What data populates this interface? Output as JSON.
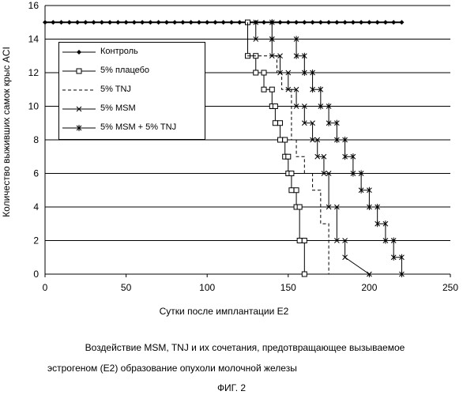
{
  "chart_data": {
    "type": "line",
    "title": "",
    "xlabel": "Сутки после имплантации E2",
    "ylabel": "Количество выживших самок крыс ACI",
    "xlim": [
      0,
      250
    ],
    "ylim": [
      0,
      16
    ],
    "xticks": [
      "0",
      "50",
      "100",
      "150",
      "200",
      "250"
    ],
    "yticks": [
      "0",
      "2",
      "4",
      "6",
      "8",
      "10",
      "12",
      "14",
      "16"
    ],
    "grid": "horizontal",
    "legend_position": "upper-left",
    "series": [
      {
        "name": "Контроль",
        "style": "solid-diamond",
        "x": [
          0,
          5,
          10,
          15,
          20,
          25,
          30,
          35,
          40,
          45,
          50,
          55,
          60,
          65,
          70,
          75,
          80,
          85,
          90,
          95,
          100,
          105,
          110,
          115,
          120,
          125,
          130,
          135,
          140,
          145,
          150,
          155,
          160,
          165,
          170,
          175,
          180,
          185,
          190,
          195,
          200,
          205,
          210,
          215,
          220
        ],
        "y": [
          15,
          15,
          15,
          15,
          15,
          15,
          15,
          15,
          15,
          15,
          15,
          15,
          15,
          15,
          15,
          15,
          15,
          15,
          15,
          15,
          15,
          15,
          15,
          15,
          15,
          15,
          15,
          15,
          15,
          15,
          15,
          15,
          15,
          15,
          15,
          15,
          15,
          15,
          15,
          15,
          15,
          15,
          15,
          15,
          15
        ]
      },
      {
        "name": "5% плацебо",
        "style": "solid-square",
        "x": [
          125,
          125,
          130,
          130,
          135,
          135,
          140,
          140,
          142,
          142,
          145,
          145,
          148,
          148,
          150,
          150,
          152,
          152,
          155,
          155,
          157,
          157,
          160,
          160
        ],
        "y": [
          15,
          13,
          13,
          12,
          12,
          11,
          11,
          10,
          10,
          9,
          9,
          8,
          8,
          7,
          7,
          6,
          6,
          5,
          5,
          4,
          4,
          2,
          2,
          0
        ]
      },
      {
        "name": "5% TNJ",
        "style": "dashed",
        "x": [
          125,
          125,
          130,
          130,
          143,
          143,
          146,
          146,
          152,
          152,
          155,
          155,
          160,
          160,
          165,
          165,
          170,
          170,
          175,
          175
        ],
        "y": [
          15,
          13,
          13,
          13,
          13,
          12,
          12,
          11,
          11,
          8,
          8,
          7,
          7,
          6,
          6,
          5,
          5,
          3,
          3,
          0
        ]
      },
      {
        "name": "5% MSM",
        "style": "solid-x",
        "x": [
          130,
          130,
          140,
          140,
          145,
          145,
          150,
          150,
          155,
          155,
          160,
          160,
          165,
          165,
          168,
          168,
          172,
          172,
          175,
          175,
          180,
          180,
          185,
          185,
          200
        ],
        "y": [
          15,
          14,
          14,
          13,
          13,
          12,
          12,
          11,
          11,
          10,
          10,
          9,
          9,
          8,
          8,
          7,
          7,
          6,
          6,
          4,
          4,
          2,
          2,
          1,
          0
        ]
      },
      {
        "name": "5% MSM + 5% TNJ",
        "style": "solid-star",
        "x": [
          140,
          140,
          155,
          155,
          160,
          160,
          165,
          165,
          170,
          170,
          175,
          175,
          180,
          180,
          185,
          185,
          190,
          190,
          195,
          195,
          200,
          200,
          205,
          205,
          210,
          210,
          215,
          215,
          220,
          220
        ],
        "y": [
          15,
          14,
          14,
          13,
          13,
          12,
          12,
          11,
          11,
          10,
          10,
          9,
          9,
          8,
          8,
          7,
          7,
          6,
          6,
          5,
          5,
          4,
          4,
          3,
          3,
          2,
          2,
          1,
          1,
          0
        ]
      }
    ]
  },
  "caption": {
    "line1": "Воздействие MSM, TNJ и их сочетания, предотвращающее вызываемое",
    "line2": "эстрогеном (E2) образование опухоли молочной железы",
    "figure": "ФИГ. 2"
  }
}
